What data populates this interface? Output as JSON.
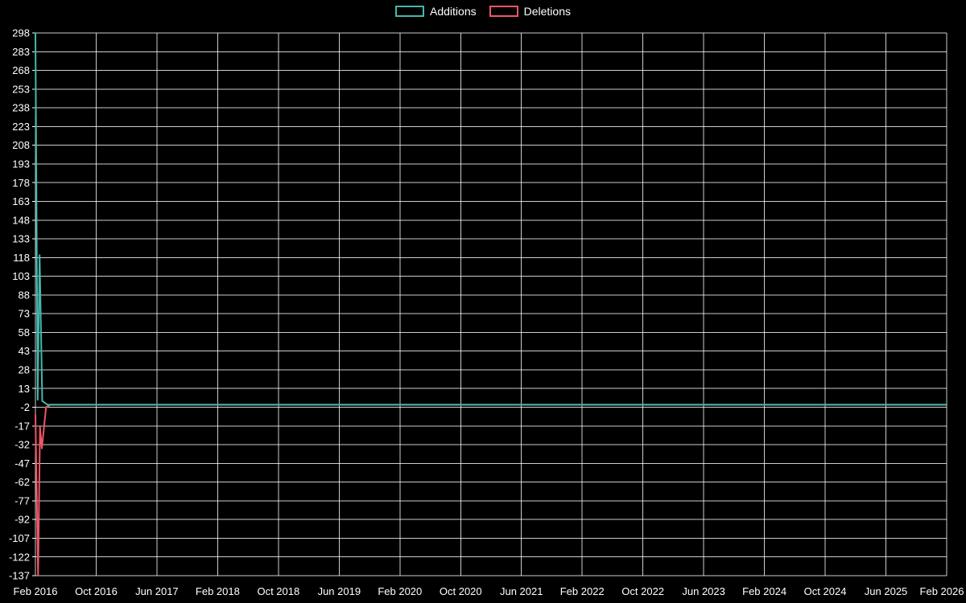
{
  "page": {
    "background_color": "#000000",
    "text_color": "#ffffff"
  },
  "chart_data": {
    "type": "line",
    "title": "",
    "xlabel": "",
    "ylabel": "",
    "grid": true,
    "legend_position": "top-center",
    "x_unit": "months since Feb 2016",
    "x_range": [
      0,
      120
    ],
    "y_range": [
      -137,
      298
    ],
    "y_ticks": [
      298,
      283,
      268,
      253,
      238,
      223,
      208,
      193,
      178,
      163,
      148,
      133,
      118,
      103,
      88,
      73,
      58,
      43,
      28,
      13,
      -2,
      -17,
      -32,
      -47,
      -62,
      -77,
      -92,
      -107,
      -122,
      -137
    ],
    "x_ticks": [
      {
        "x": 0,
        "label": "Feb 2016"
      },
      {
        "x": 8,
        "label": "Oct 2016"
      },
      {
        "x": 16,
        "label": "Jun 2017"
      },
      {
        "x": 24,
        "label": "Feb 2018"
      },
      {
        "x": 32,
        "label": "Oct 2018"
      },
      {
        "x": 40,
        "label": "Jun 2019"
      },
      {
        "x": 48,
        "label": "Feb 2020"
      },
      {
        "x": 56,
        "label": "Oct 2020"
      },
      {
        "x": 64,
        "label": "Jun 2021"
      },
      {
        "x": 72,
        "label": "Feb 2022"
      },
      {
        "x": 80,
        "label": "Oct 2022"
      },
      {
        "x": 88,
        "label": "Jun 2023"
      },
      {
        "x": 96,
        "label": "Feb 2024"
      },
      {
        "x": 104,
        "label": "Oct 2024"
      },
      {
        "x": 112,
        "label": "Jun 2025"
      },
      {
        "x": 120,
        "label": "Feb 2026"
      }
    ],
    "series": [
      {
        "name": "Additions",
        "color": "#45b8ac",
        "points": [
          [
            0,
            298
          ],
          [
            0.3,
            4
          ],
          [
            0.55,
            120
          ],
          [
            0.9,
            3
          ],
          [
            1.6,
            0
          ],
          [
            120,
            0
          ]
        ]
      },
      {
        "name": "Deletions",
        "color": "#ef5666",
        "points": [
          [
            0,
            -8
          ],
          [
            0.35,
            -137
          ],
          [
            0.6,
            -18
          ],
          [
            0.85,
            -35
          ],
          [
            1.4,
            -2
          ],
          [
            2,
            0
          ],
          [
            120,
            0
          ]
        ]
      }
    ]
  }
}
